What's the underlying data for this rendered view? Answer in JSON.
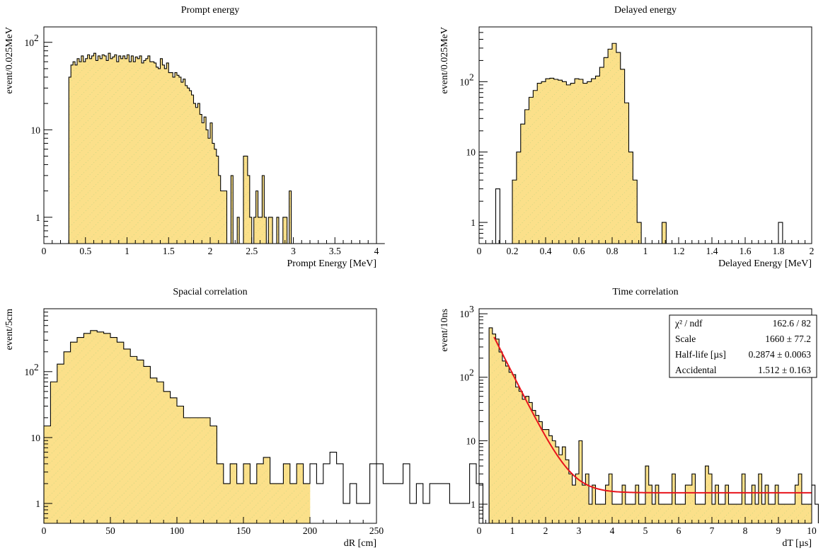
{
  "colors": {
    "fill": "#fbe08a",
    "hatch": "#a8cc78",
    "line": "#000000",
    "fit": "#e8141c"
  },
  "chart_data": [
    {
      "id": "prompt",
      "type": "histogram",
      "title": "Prompt energy",
      "xlabel": "Prompt Energy [MeV]",
      "ylabel": "event/0.025MeV",
      "xlim": [
        0,
        4
      ],
      "ylim": [
        0.5,
        150
      ],
      "log_y": true,
      "grid": false,
      "x_ticks": [
        {
          "v": 0,
          "l": "0"
        },
        {
          "v": 0.5,
          "l": "0.5"
        },
        {
          "v": 1,
          "l": "1"
        },
        {
          "v": 1.5,
          "l": "1.5"
        },
        {
          "v": 2,
          "l": "2"
        },
        {
          "v": 2.5,
          "l": "2.5"
        },
        {
          "v": 3,
          "l": "3"
        },
        {
          "v": 3.5,
          "l": "3.5"
        },
        {
          "v": 4,
          "l": "4"
        }
      ],
      "y_ticks": [
        {
          "v": 1,
          "l": "1"
        },
        {
          "v": 10,
          "l": "10"
        },
        {
          "v": 100,
          "l": "10",
          "sup": "2"
        }
      ],
      "bin_width": 0.025,
      "filled": {
        "start": 0.3,
        "values": [
          40,
          55,
          60,
          55,
          65,
          60,
          70,
          60,
          65,
          72,
          65,
          70,
          75,
          62,
          70,
          65,
          72,
          70,
          62,
          75,
          65,
          68,
          72,
          60,
          70,
          65,
          70,
          65,
          72,
          60,
          70,
          60,
          68,
          65,
          70,
          58,
          62,
          65,
          70,
          60,
          60,
          58,
          52,
          50,
          65,
          55,
          50,
          58,
          45,
          45,
          40,
          45,
          42,
          40,
          35,
          38,
          32,
          30,
          28,
          25,
          20,
          18,
          20,
          15,
          12,
          14,
          10,
          8,
          12,
          7,
          6,
          5,
          3,
          2,
          2,
          2,
          0,
          0,
          3,
          0,
          0,
          1,
          0,
          0,
          5,
          5,
          3,
          1,
          0,
          1,
          2,
          1,
          1,
          3,
          1,
          0,
          1,
          1,
          0,
          0,
          1,
          0,
          0,
          1,
          1,
          0,
          2,
          0,
          0,
          0,
          0,
          0,
          0,
          0,
          0,
          0,
          0,
          0,
          0,
          0,
          0,
          0,
          0,
          0,
          0,
          0,
          0,
          0,
          0,
          0,
          0,
          0,
          0,
          0,
          0,
          0,
          0,
          0,
          0,
          0,
          0,
          0,
          0,
          0,
          0,
          0,
          0,
          0,
          0,
          0,
          0,
          0
        ]
      },
      "outline": {
        "start": 0.3,
        "values": [
          40,
          55,
          60,
          55,
          65,
          60,
          70,
          60,
          65,
          72,
          65,
          70,
          75,
          62,
          70,
          65,
          72,
          70,
          62,
          75,
          65,
          68,
          72,
          60,
          70,
          65,
          70,
          65,
          72,
          60,
          70,
          60,
          68,
          65,
          70,
          58,
          62,
          65,
          70,
          60,
          60,
          58,
          52,
          50,
          65,
          55,
          50,
          58,
          45,
          45,
          40,
          45,
          42,
          40,
          35,
          38,
          32,
          30,
          28,
          25,
          20,
          18,
          20,
          15,
          12,
          14,
          10,
          8,
          12,
          7,
          6,
          5,
          3,
          2,
          2,
          2,
          0,
          0,
          3,
          0,
          0,
          1,
          0,
          0,
          5,
          5,
          3,
          1,
          0,
          1,
          2,
          1,
          1,
          3,
          1,
          0,
          1,
          1,
          0,
          0,
          1,
          0,
          0,
          1,
          1,
          0,
          2,
          0,
          0,
          0,
          0,
          0,
          0,
          0,
          0,
          0,
          0,
          0,
          0,
          0,
          0,
          0,
          0,
          0,
          0,
          0,
          0,
          0,
          0,
          0,
          0,
          0,
          0,
          0,
          0,
          0,
          0,
          0,
          0,
          0,
          0,
          0,
          0,
          0,
          0,
          0,
          0,
          0,
          0,
          0,
          0,
          0
        ]
      }
    },
    {
      "id": "delayed",
      "type": "histogram",
      "title": "Delayed energy",
      "xlabel": "Delayed Energy [MeV]",
      "ylabel": "event/0.025MeV",
      "xlim": [
        0,
        2
      ],
      "ylim": [
        0.5,
        600
      ],
      "log_y": true,
      "grid": false,
      "x_ticks": [
        {
          "v": 0,
          "l": "0"
        },
        {
          "v": 0.2,
          "l": "0.2"
        },
        {
          "v": 0.4,
          "l": "0.4"
        },
        {
          "v": 0.6,
          "l": "0.6"
        },
        {
          "v": 0.8,
          "l": "0.8"
        },
        {
          "v": 1,
          "l": "1"
        },
        {
          "v": 1.2,
          "l": "1.2"
        },
        {
          "v": 1.4,
          "l": "1.4"
        },
        {
          "v": 1.6,
          "l": "1.6"
        },
        {
          "v": 1.8,
          "l": "1.8"
        },
        {
          "v": 2,
          "l": "2"
        }
      ],
      "y_ticks": [
        {
          "v": 1,
          "l": "1"
        },
        {
          "v": 10,
          "l": "10"
        },
        {
          "v": 100,
          "l": "10",
          "sup": "2"
        }
      ],
      "bin_width": 0.025,
      "filled": {
        "start": 0.2,
        "values": [
          4,
          10,
          25,
          40,
          60,
          75,
          95,
          100,
          110,
          112,
          108,
          105,
          100,
          90,
          95,
          110,
          108,
          95,
          100,
          110,
          120,
          160,
          220,
          290,
          350,
          260,
          150,
          50,
          10,
          4,
          1,
          0,
          0,
          0,
          0,
          0,
          1
        ]
      },
      "outline": {
        "start": 0.1,
        "values": [
          3,
          0,
          0,
          0,
          4,
          10,
          25,
          40,
          60,
          75,
          95,
          100,
          110,
          112,
          108,
          105,
          100,
          90,
          95,
          110,
          108,
          95,
          100,
          110,
          120,
          160,
          220,
          290,
          350,
          260,
          150,
          50,
          10,
          4,
          1,
          0,
          0,
          0,
          0,
          0,
          1,
          0,
          0,
          0,
          0,
          0,
          0,
          0,
          0,
          0,
          0,
          0,
          0,
          0,
          0,
          0,
          0,
          0,
          0,
          0,
          0,
          0,
          0,
          0,
          0,
          0,
          0,
          0,
          1
        ]
      }
    },
    {
      "id": "spacial",
      "type": "histogram",
      "title": "Spacial correlation",
      "xlabel": "dR [cm]",
      "ylabel": "event/5cm",
      "xlim": [
        0,
        250
      ],
      "ylim": [
        0.5,
        900
      ],
      "log_y": true,
      "grid": false,
      "x_ticks": [
        {
          "v": 0,
          "l": "0"
        },
        {
          "v": 50,
          "l": "50"
        },
        {
          "v": 100,
          "l": "100"
        },
        {
          "v": 150,
          "l": "150"
        },
        {
          "v": 200,
          "l": "200"
        },
        {
          "v": 250,
          "l": "250"
        }
      ],
      "y_ticks": [
        {
          "v": 1,
          "l": "1"
        },
        {
          "v": 10,
          "l": "10"
        },
        {
          "v": 100,
          "l": "10",
          "sup": "2"
        }
      ],
      "bin_width": 5,
      "filled": {
        "start": 0,
        "values": [
          15,
          70,
          130,
          200,
          280,
          330,
          380,
          420,
          400,
          380,
          330,
          280,
          220,
          170,
          150,
          120,
          80,
          70,
          50,
          40,
          30,
          20,
          20,
          20,
          20,
          15,
          4,
          2,
          4,
          2,
          4,
          2,
          4,
          5,
          2,
          2,
          4,
          2,
          4,
          2
        ]
      },
      "outline": {
        "start": 0,
        "values": [
          15,
          70,
          130,
          200,
          280,
          330,
          380,
          420,
          400,
          380,
          330,
          280,
          220,
          170,
          150,
          120,
          80,
          70,
          50,
          40,
          30,
          20,
          20,
          20,
          20,
          15,
          4,
          2,
          4,
          2,
          4,
          2,
          4,
          5,
          2,
          2,
          4,
          2,
          4,
          2,
          4,
          2,
          4,
          6,
          4,
          1,
          2,
          1,
          1,
          4,
          4,
          2,
          2,
          2,
          4,
          1,
          2,
          1,
          2,
          2,
          2,
          1,
          1,
          1,
          4,
          2
        ]
      }
    },
    {
      "id": "time",
      "type": "histogram",
      "title": "Time correlation",
      "xlabel": "dT [µs]",
      "ylabel": "event/10ns",
      "xlim": [
        0,
        10
      ],
      "ylim": [
        0.5,
        1200
      ],
      "log_y": true,
      "grid": false,
      "x_ticks": [
        {
          "v": 0,
          "l": "0"
        },
        {
          "v": 1,
          "l": "1"
        },
        {
          "v": 2,
          "l": "2"
        },
        {
          "v": 3,
          "l": "3"
        },
        {
          "v": 4,
          "l": "4"
        },
        {
          "v": 5,
          "l": "5"
        },
        {
          "v": 6,
          "l": "6"
        },
        {
          "v": 7,
          "l": "7"
        },
        {
          "v": 8,
          "l": "8"
        },
        {
          "v": 9,
          "l": "9"
        },
        {
          "v": 10,
          "l": "10"
        }
      ],
      "y_ticks": [
        {
          "v": 1,
          "l": "1"
        },
        {
          "v": 10,
          "l": "10"
        },
        {
          "v": 100,
          "l": "10",
          "sup": "2"
        },
        {
          "v": 1000,
          "l": "10",
          "sup": "3"
        }
      ],
      "bin_width": 0.1,
      "filled": {
        "start": 0.3,
        "values": [
          600,
          480,
          400,
          250,
          180,
          150,
          120,
          110,
          70,
          60,
          45,
          50,
          40,
          30,
          25,
          20,
          15,
          15,
          12,
          10,
          8,
          6,
          8,
          5,
          3,
          2,
          3,
          10,
          2,
          3,
          1,
          2,
          1,
          1,
          1,
          2,
          3,
          1,
          1,
          1,
          2,
          1,
          1,
          1,
          2,
          1,
          1,
          4,
          2,
          1,
          2,
          1,
          1,
          1,
          1,
          3,
          1,
          1,
          1,
          2,
          2,
          3,
          1,
          1,
          1,
          4,
          3,
          1,
          2,
          1,
          1,
          2,
          1,
          1,
          1,
          1,
          3,
          1,
          1,
          2,
          1,
          3,
          1,
          2,
          1,
          1,
          2,
          1,
          1,
          1,
          1,
          1,
          2,
          3,
          1,
          1,
          1,
          2,
          1
        ]
      },
      "outline": {
        "start": 0.3,
        "values": [
          600,
          480,
          400,
          250,
          180,
          150,
          120,
          110,
          70,
          60,
          45,
          50,
          40,
          30,
          25,
          20,
          15,
          15,
          12,
          10,
          8,
          6,
          8,
          5,
          3,
          2,
          3,
          10,
          2,
          3,
          1,
          2,
          1,
          1,
          1,
          2,
          3,
          1,
          1,
          1,
          2,
          1,
          1,
          1,
          2,
          1,
          1,
          4,
          2,
          1,
          2,
          1,
          1,
          1,
          1,
          3,
          1,
          1,
          1,
          2,
          2,
          3,
          1,
          1,
          1,
          4,
          3,
          1,
          2,
          1,
          1,
          2,
          1,
          1,
          1,
          1,
          3,
          1,
          1,
          2,
          1,
          3,
          1,
          2,
          1,
          1,
          2,
          1,
          1,
          1,
          1,
          1,
          2,
          3,
          1,
          1,
          1,
          2,
          1
        ]
      },
      "fit": {
        "scale": 1660,
        "half_life": 0.2874,
        "accidental": 1.512,
        "x_start": 0.45,
        "x_end": 10.0
      },
      "stats": [
        {
          "name": "χ² / ndf",
          "value": "162.6 / 82"
        },
        {
          "name": "Scale",
          "value": "1660 ± 77.2"
        },
        {
          "name": "Half-life [µs]",
          "value": "0.2874 ± 0.0063"
        },
        {
          "name": "Accidental",
          "value": "1.512 ± 0.163"
        }
      ]
    }
  ]
}
